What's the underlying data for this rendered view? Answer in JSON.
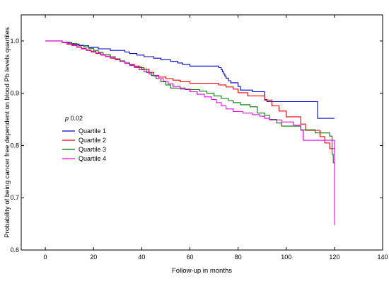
{
  "chart_data": {
    "type": "line",
    "step": true,
    "title": "",
    "xlabel": "Follow-up in months",
    "ylabel": "Probability of being cancer free dependent on blood Pb levels quartiles",
    "xlim": [
      -10,
      140
    ],
    "ylim": [
      0.6,
      1.05
    ],
    "xticks": [
      0,
      20,
      40,
      60,
      80,
      100,
      120,
      140
    ],
    "yticks": [
      0.6,
      0.7,
      0.8,
      0.9,
      1.0
    ],
    "xtick_labels": [
      "0",
      "20",
      "40",
      "60",
      "80",
      "100",
      "120",
      "140"
    ],
    "ytick_labels": [
      "0.6",
      "0.7",
      "0.8",
      "0.9",
      "1.0"
    ],
    "grid": false,
    "legend_position": "center-left",
    "annotation": {
      "italic": "p",
      "text": " 0.02"
    },
    "series": [
      {
        "name": "Quartile 1",
        "color": "#0000cc",
        "points": [
          [
            0,
            1.0
          ],
          [
            6,
            1.0
          ],
          [
            7,
            0.997
          ],
          [
            11,
            0.994
          ],
          [
            14,
            0.991
          ],
          [
            18,
            0.988
          ],
          [
            22,
            0.985
          ],
          [
            27,
            0.982
          ],
          [
            31,
            0.982
          ],
          [
            33,
            0.979
          ],
          [
            35,
            0.976
          ],
          [
            38,
            0.973
          ],
          [
            41,
            0.97
          ],
          [
            45,
            0.967
          ],
          [
            48,
            0.964
          ],
          [
            52,
            0.961
          ],
          [
            55,
            0.958
          ],
          [
            57,
            0.955
          ],
          [
            60,
            0.952
          ],
          [
            72,
            0.949
          ],
          [
            73,
            0.945
          ],
          [
            73.5,
            0.941
          ],
          [
            74,
            0.937
          ],
          [
            74.5,
            0.933
          ],
          [
            75,
            0.929
          ],
          [
            76,
            0.924
          ],
          [
            77,
            0.92
          ],
          [
            80,
            0.913
          ],
          [
            81,
            0.906
          ],
          [
            86,
            0.903
          ],
          [
            91,
            0.888
          ],
          [
            92,
            0.884
          ],
          [
            104,
            0.884
          ],
          [
            113,
            0.852
          ],
          [
            120,
            0.852
          ]
        ]
      },
      {
        "name": "Quartile 2",
        "color": "#ee0000",
        "points": [
          [
            0,
            1.0
          ],
          [
            6,
            1.0
          ],
          [
            7,
            0.997
          ],
          [
            9,
            0.994
          ],
          [
            11,
            0.991
          ],
          [
            13,
            0.988
          ],
          [
            15,
            0.985
          ],
          [
            17,
            0.982
          ],
          [
            19,
            0.979
          ],
          [
            21,
            0.976
          ],
          [
            23,
            0.973
          ],
          [
            25,
            0.97
          ],
          [
            27,
            0.967
          ],
          [
            29,
            0.964
          ],
          [
            31,
            0.961
          ],
          [
            33,
            0.958
          ],
          [
            35,
            0.955
          ],
          [
            37,
            0.952
          ],
          [
            39,
            0.949
          ],
          [
            41,
            0.946
          ],
          [
            43,
            0.94
          ],
          [
            45,
            0.934
          ],
          [
            47,
            0.931
          ],
          [
            50,
            0.928
          ],
          [
            53,
            0.925
          ],
          [
            56,
            0.922
          ],
          [
            60,
            0.919
          ],
          [
            72,
            0.916
          ],
          [
            75,
            0.912
          ],
          [
            78,
            0.908
          ],
          [
            80,
            0.901
          ],
          [
            84,
            0.895
          ],
          [
            91,
            0.887
          ],
          [
            94,
            0.876
          ],
          [
            97,
            0.866
          ],
          [
            100,
            0.855
          ],
          [
            106,
            0.841
          ],
          [
            108,
            0.829
          ],
          [
            114,
            0.817
          ],
          [
            116,
            0.805
          ],
          [
            118,
            0.794
          ],
          [
            120,
            0.794
          ]
        ]
      },
      {
        "name": "Quartile 3",
        "color": "#007700",
        "points": [
          [
            0,
            1.0
          ],
          [
            6,
            1.0
          ],
          [
            7,
            0.998
          ],
          [
            10,
            0.995
          ],
          [
            13,
            0.992
          ],
          [
            16,
            0.989
          ],
          [
            18,
            0.986
          ],
          [
            20,
            0.982
          ],
          [
            22,
            0.978
          ],
          [
            24,
            0.974
          ],
          [
            27,
            0.97
          ],
          [
            29,
            0.966
          ],
          [
            31,
            0.962
          ],
          [
            33,
            0.958
          ],
          [
            35,
            0.954
          ],
          [
            37,
            0.95
          ],
          [
            40,
            0.946
          ],
          [
            42,
            0.94
          ],
          [
            44,
            0.934
          ],
          [
            46,
            0.928
          ],
          [
            48,
            0.922
          ],
          [
            50,
            0.916
          ],
          [
            52,
            0.91
          ],
          [
            58,
            0.907
          ],
          [
            64,
            0.904
          ],
          [
            67,
            0.9
          ],
          [
            70,
            0.895
          ],
          [
            73,
            0.89
          ],
          [
            76,
            0.886
          ],
          [
            78,
            0.882
          ],
          [
            81,
            0.878
          ],
          [
            85,
            0.874
          ],
          [
            88,
            0.862
          ],
          [
            91,
            0.858
          ],
          [
            93,
            0.85
          ],
          [
            96,
            0.843
          ],
          [
            98,
            0.837
          ],
          [
            106,
            0.83
          ],
          [
            112,
            0.824
          ],
          [
            118,
            0.818
          ],
          [
            119,
            0.783
          ],
          [
            119.5,
            0.767
          ],
          [
            120,
            0.767
          ]
        ]
      },
      {
        "name": "Quartile 4",
        "color": "#ee00ee",
        "points": [
          [
            0,
            1.0
          ],
          [
            6,
            1.0
          ],
          [
            7,
            0.998
          ],
          [
            9,
            0.995
          ],
          [
            11,
            0.992
          ],
          [
            13,
            0.989
          ],
          [
            15,
            0.986
          ],
          [
            17,
            0.983
          ],
          [
            19,
            0.98
          ],
          [
            21,
            0.977
          ],
          [
            23,
            0.974
          ],
          [
            25,
            0.971
          ],
          [
            27,
            0.968
          ],
          [
            29,
            0.965
          ],
          [
            31,
            0.961
          ],
          [
            33,
            0.957
          ],
          [
            35,
            0.953
          ],
          [
            37,
            0.949
          ],
          [
            39,
            0.945
          ],
          [
            41,
            0.941
          ],
          [
            43,
            0.937
          ],
          [
            45,
            0.933
          ],
          [
            47,
            0.928
          ],
          [
            49,
            0.923
          ],
          [
            51,
            0.918
          ],
          [
            53,
            0.913
          ],
          [
            56,
            0.908
          ],
          [
            60,
            0.903
          ],
          [
            63,
            0.898
          ],
          [
            66,
            0.893
          ],
          [
            69,
            0.888
          ],
          [
            71,
            0.882
          ],
          [
            73,
            0.876
          ],
          [
            75,
            0.87
          ],
          [
            78,
            0.865
          ],
          [
            82,
            0.862
          ],
          [
            86,
            0.859
          ],
          [
            89,
            0.856
          ],
          [
            91,
            0.852
          ],
          [
            93,
            0.849
          ],
          [
            98,
            0.845
          ],
          [
            103,
            0.839
          ],
          [
            106,
            0.829
          ],
          [
            107,
            0.81
          ],
          [
            117,
            0.81
          ],
          [
            120,
            0.81
          ],
          [
            120,
            0.648
          ]
        ]
      }
    ]
  }
}
